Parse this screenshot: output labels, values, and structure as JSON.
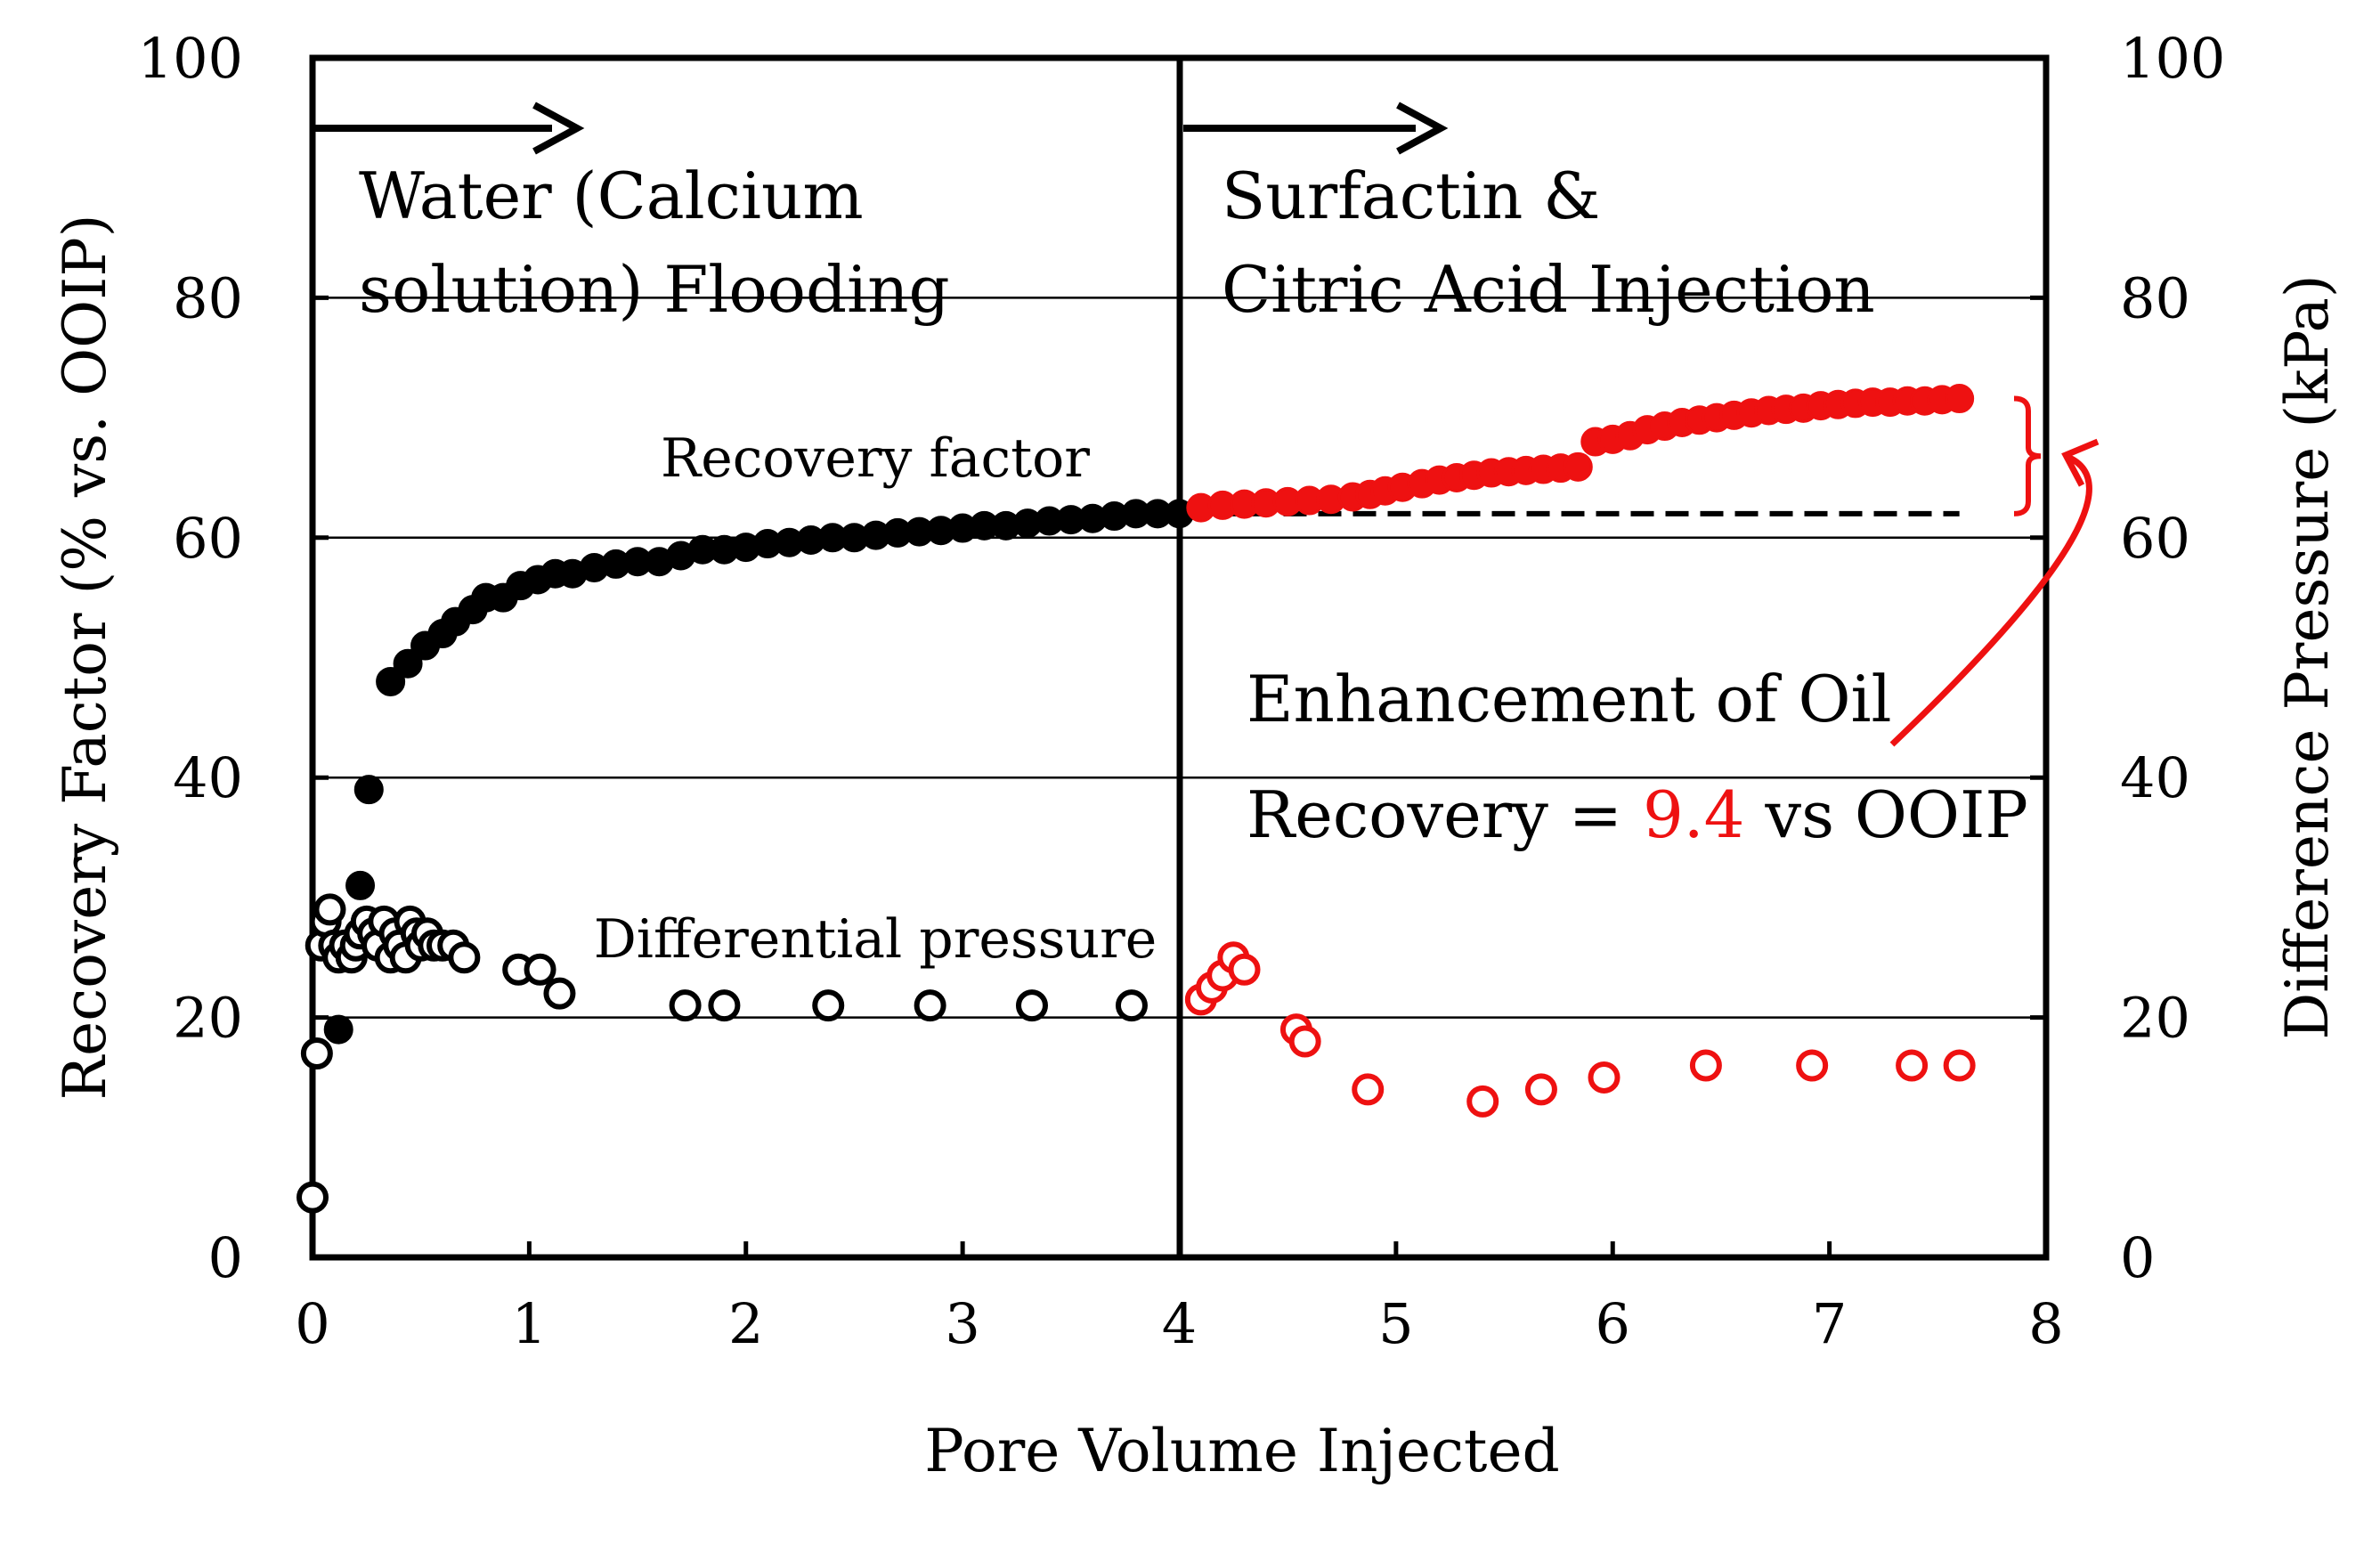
{
  "chart_data": {
    "type": "scatter",
    "title": "",
    "xlabel": "Pore Volume Injected",
    "ylabel": "Recovery Factor (% vs. OOIP)",
    "y2label": "Difference Pressure (kPa)",
    "xlim": [
      0,
      8
    ],
    "ylim": [
      0,
      100
    ],
    "y2lim": [
      0,
      100
    ],
    "x_ticks": [
      "0",
      "1",
      "2",
      "3",
      "4",
      "5",
      "6",
      "7",
      "8"
    ],
    "y_ticks": [
      "0",
      "20",
      "40",
      "60",
      "80",
      "100"
    ],
    "y2_ticks": [
      "0",
      "20",
      "40",
      "60",
      "80",
      "100"
    ],
    "grid": "horizontal",
    "phase_boundary_x": 4,
    "phases": [
      {
        "line1": "Water (Calcium",
        "line2": "solution) Flooding"
      },
      {
        "line1": "Surfactin &",
        "line2": "Citric Acid Injection"
      }
    ],
    "series_labels": {
      "recovery": "Recovery factor",
      "pressure": "Differential pressure"
    },
    "enhancement": {
      "line1": "Enhancement of Oil",
      "line2_prefix": "Recovery = ",
      "value": "9.4",
      "line2_suffix": " vs OOIP",
      "baseline": 62,
      "final": 71.6
    },
    "colors": {
      "water_phase": "#000000",
      "surfactin_phase": "#ee1111"
    },
    "series": [
      {
        "name": "Recovery factor (water flooding)",
        "axis": "left",
        "marker": "filled-circle",
        "color": "#000000",
        "points": [
          [
            0.12,
            19
          ],
          [
            0.22,
            31
          ],
          [
            0.26,
            39
          ],
          [
            0.36,
            48
          ],
          [
            0.44,
            49.5
          ],
          [
            0.52,
            51
          ],
          [
            0.6,
            52
          ],
          [
            0.66,
            53
          ],
          [
            0.74,
            54
          ],
          [
            0.8,
            55
          ],
          [
            0.88,
            55
          ],
          [
            0.96,
            56
          ],
          [
            1.04,
            56.5
          ],
          [
            1.12,
            57
          ],
          [
            1.2,
            57
          ],
          [
            1.3,
            57.5
          ],
          [
            1.4,
            57.8
          ],
          [
            1.5,
            58
          ],
          [
            1.6,
            58
          ],
          [
            1.7,
            58.5
          ],
          [
            1.8,
            59
          ],
          [
            1.9,
            59
          ],
          [
            2.0,
            59.2
          ],
          [
            2.1,
            59.5
          ],
          [
            2.2,
            59.6
          ],
          [
            2.3,
            59.8
          ],
          [
            2.4,
            60
          ],
          [
            2.5,
            60
          ],
          [
            2.6,
            60.2
          ],
          [
            2.7,
            60.4
          ],
          [
            2.8,
            60.5
          ],
          [
            2.9,
            60.6
          ],
          [
            3.0,
            60.8
          ],
          [
            3.1,
            61
          ],
          [
            3.2,
            61
          ],
          [
            3.3,
            61.2
          ],
          [
            3.4,
            61.4
          ],
          [
            3.5,
            61.5
          ],
          [
            3.6,
            61.6
          ],
          [
            3.7,
            61.8
          ],
          [
            3.8,
            62
          ],
          [
            3.9,
            62
          ],
          [
            4.0,
            62
          ]
        ]
      },
      {
        "name": "Recovery factor (surfactin & citric acid)",
        "axis": "left",
        "marker": "filled-circle",
        "color": "#ee1111",
        "points": [
          [
            4.1,
            62.5
          ],
          [
            4.2,
            62.7
          ],
          [
            4.3,
            62.8
          ],
          [
            4.4,
            62.9
          ],
          [
            4.5,
            63
          ],
          [
            4.6,
            63.1
          ],
          [
            4.7,
            63.2
          ],
          [
            4.8,
            63.4
          ],
          [
            4.88,
            63.6
          ],
          [
            4.95,
            63.9
          ],
          [
            5.03,
            64.2
          ],
          [
            5.12,
            64.5
          ],
          [
            5.2,
            64.8
          ],
          [
            5.28,
            65
          ],
          [
            5.36,
            65.2
          ],
          [
            5.44,
            65.4
          ],
          [
            5.52,
            65.5
          ],
          [
            5.6,
            65.6
          ],
          [
            5.68,
            65.7
          ],
          [
            5.76,
            65.8
          ],
          [
            5.84,
            65.9
          ],
          [
            5.92,
            68
          ],
          [
            6.0,
            68.2
          ],
          [
            6.08,
            68.5
          ],
          [
            6.16,
            69
          ],
          [
            6.24,
            69.3
          ],
          [
            6.32,
            69.6
          ],
          [
            6.4,
            69.8
          ],
          [
            6.48,
            70
          ],
          [
            6.56,
            70.2
          ],
          [
            6.64,
            70.4
          ],
          [
            6.72,
            70.6
          ],
          [
            6.8,
            70.7
          ],
          [
            6.88,
            70.8
          ],
          [
            6.96,
            71
          ],
          [
            7.04,
            71.1
          ],
          [
            7.12,
            71.2
          ],
          [
            7.2,
            71.3
          ],
          [
            7.28,
            71.3
          ],
          [
            7.36,
            71.4
          ],
          [
            7.44,
            71.4
          ],
          [
            7.52,
            71.5
          ],
          [
            7.6,
            71.6
          ]
        ]
      },
      {
        "name": "Differential pressure (water flooding)",
        "axis": "right",
        "marker": "open-circle",
        "color": "#000000",
        "points": [
          [
            0.0,
            5
          ],
          [
            0.02,
            17
          ],
          [
            0.04,
            26
          ],
          [
            0.06,
            28
          ],
          [
            0.08,
            29
          ],
          [
            0.1,
            26
          ],
          [
            0.12,
            25
          ],
          [
            0.15,
            26
          ],
          [
            0.18,
            25
          ],
          [
            0.2,
            26
          ],
          [
            0.22,
            27
          ],
          [
            0.25,
            28
          ],
          [
            0.28,
            27
          ],
          [
            0.3,
            26
          ],
          [
            0.33,
            28
          ],
          [
            0.36,
            25
          ],
          [
            0.38,
            27
          ],
          [
            0.4,
            26
          ],
          [
            0.43,
            25
          ],
          [
            0.45,
            28
          ],
          [
            0.48,
            27
          ],
          [
            0.5,
            26
          ],
          [
            0.53,
            27
          ],
          [
            0.56,
            26
          ],
          [
            0.6,
            26
          ],
          [
            0.65,
            26
          ],
          [
            0.7,
            25
          ],
          [
            0.95,
            24
          ],
          [
            1.05,
            24
          ],
          [
            1.14,
            22
          ],
          [
            1.72,
            21
          ],
          [
            1.9,
            21
          ],
          [
            2.38,
            21
          ],
          [
            2.85,
            21
          ],
          [
            3.32,
            21
          ],
          [
            3.78,
            21
          ]
        ]
      },
      {
        "name": "Differential pressure (surfactin & citric acid)",
        "axis": "right",
        "marker": "open-circle",
        "color": "#ee1111",
        "points": [
          [
            4.1,
            21.5
          ],
          [
            4.15,
            22.5
          ],
          [
            4.2,
            23.5
          ],
          [
            4.25,
            25
          ],
          [
            4.3,
            24
          ],
          [
            4.54,
            19
          ],
          [
            4.58,
            18
          ],
          [
            4.87,
            14
          ],
          [
            5.4,
            13
          ],
          [
            5.67,
            14
          ],
          [
            5.96,
            15
          ],
          [
            6.43,
            16
          ],
          [
            6.92,
            16
          ],
          [
            7.38,
            16
          ],
          [
            7.6,
            16
          ]
        ]
      }
    ]
  }
}
